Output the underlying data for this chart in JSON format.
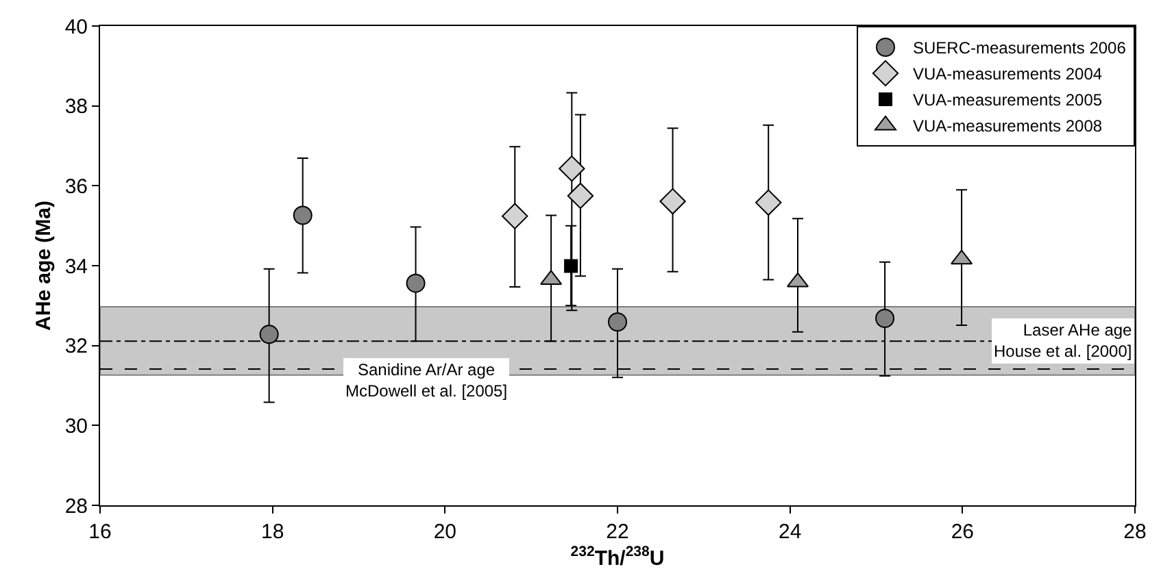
{
  "chart_data": {
    "type": "scatter",
    "xlabel": "$^{232}$Th/$^{238}$U",
    "ylabel": "AHe age (Ma)",
    "xlim": [
      16,
      28
    ],
    "xticks": [
      16,
      18,
      20,
      22,
      24,
      26,
      28
    ],
    "ylim": [
      28,
      40
    ],
    "yticks": [
      28,
      30,
      32,
      34,
      36,
      38,
      40
    ],
    "grid": false,
    "legend": "top right",
    "series": [
      {
        "name": "SUERC-measurements 2006",
        "color": "#808080",
        "marker": "circle",
        "x": [
          17.96,
          18.35,
          19.66,
          22.0,
          25.1
        ],
        "values": [
          32.28,
          35.26,
          33.56,
          32.59,
          32.68
        ],
        "errors": [
          [
            30.58,
            33.92
          ],
          [
            33.82,
            36.69
          ],
          [
            32.11,
            34.97
          ],
          [
            31.2,
            33.92
          ],
          [
            31.24,
            34.09
          ]
        ]
      },
      {
        "name": "VUA-measurements 2004",
        "color": "#d3d3d3",
        "marker": "diamond",
        "x": [
          20.81,
          21.47,
          21.57,
          22.64,
          23.75
        ],
        "values": [
          35.24,
          36.43,
          35.75,
          35.61,
          35.58
        ],
        "errors": [
          [
            33.47,
            36.98
          ],
          [
            32.88,
            38.33
          ],
          [
            33.74,
            37.78
          ],
          [
            33.85,
            37.44
          ],
          [
            33.65,
            37.52
          ]
        ]
      },
      {
        "name": "VUA-measurements 2005",
        "color": "#000000",
        "marker": "square",
        "x": [
          21.46
        ],
        "values": [
          33.99
        ],
        "errors": [
          [
            33.0,
            35.0
          ]
        ]
      },
      {
        "name": "VUA-measurements 2008",
        "color": "#a0a0a0",
        "marker": "triangle",
        "x": [
          21.23,
          24.09,
          25.99
        ],
        "values": [
          33.65,
          33.59,
          34.16
        ],
        "errors": [
          [
            32.11,
            35.26
          ],
          [
            32.34,
            35.18
          ],
          [
            32.51,
            35.9
          ]
        ]
      }
    ],
    "bands": [
      {
        "axis": "y",
        "from": 31.26,
        "to": 32.97,
        "color": "#c8c8c8"
      }
    ],
    "ref_lines": [
      {
        "axis": "y",
        "value": 31.41,
        "label": "Sanidine Ar/Ar age\nMcDowell et al. [2005]",
        "line_style": "dashed"
      },
      {
        "axis": "y",
        "value": 32.11,
        "label": "Laser AHe age\nHouse et al. [2000]",
        "line_style": "dashdot"
      }
    ]
  }
}
